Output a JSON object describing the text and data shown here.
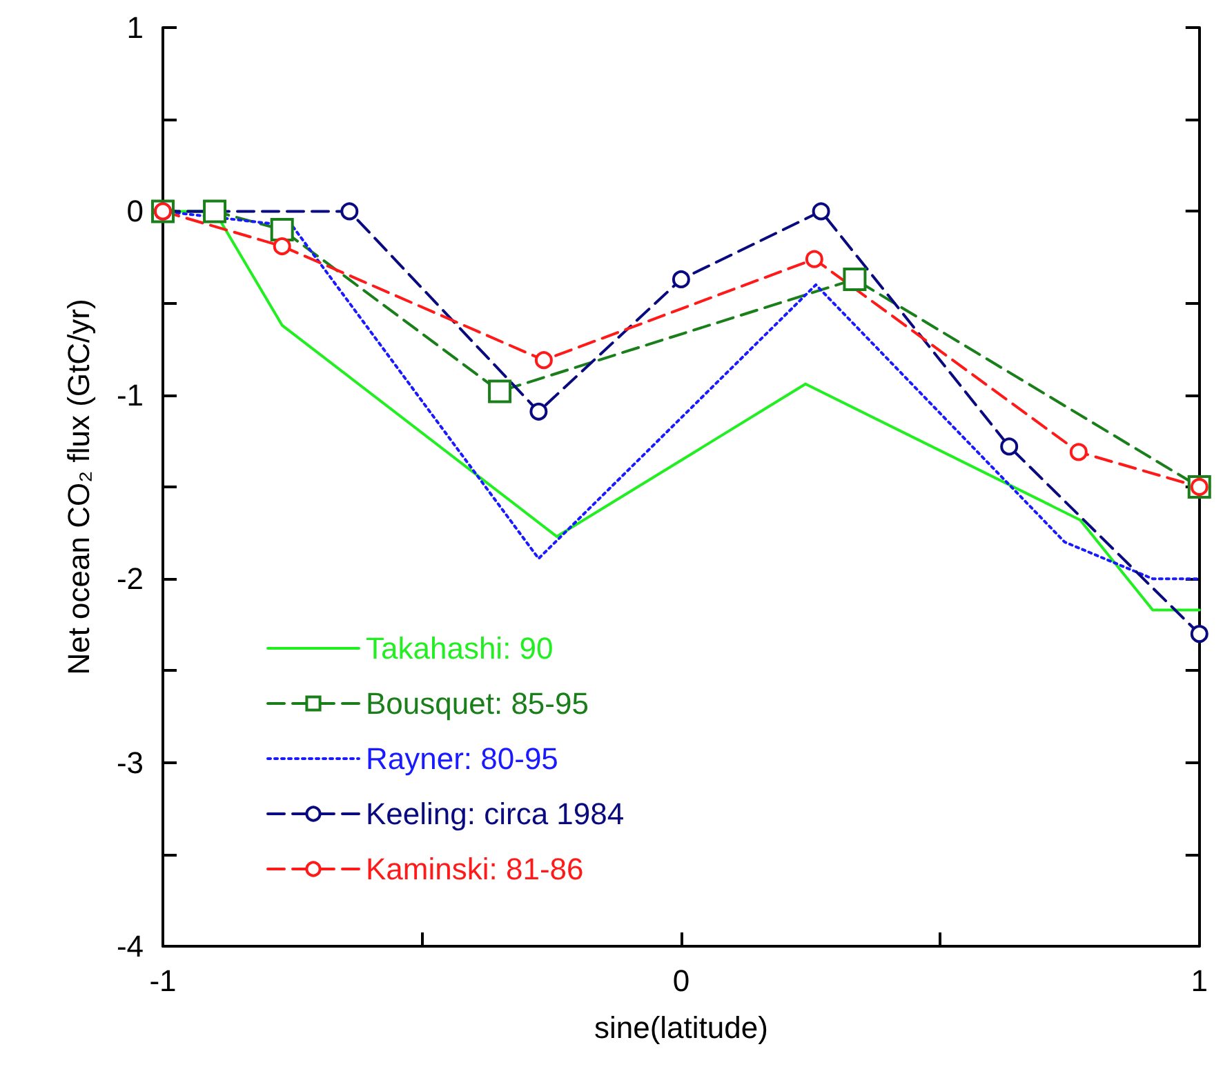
{
  "chart_data": {
    "type": "line",
    "xlabel": "sine(latitude)",
    "ylabel": "Net ocean CO₂ flux (GtC/yr)",
    "xlim": [
      -1,
      1
    ],
    "xticks": [
      -1,
      {
        "value": -0.5,
        "label": null
      },
      0,
      {
        "value": 0.5,
        "label": null
      },
      1
    ],
    "ylim": [
      -4,
      1
    ],
    "yticks": [
      -4,
      {
        "value": -3.5,
        "label": null
      },
      -3,
      {
        "value": -2.5,
        "label": null
      },
      -2,
      {
        "value": -1.5,
        "label": null
      },
      -1,
      {
        "value": -0.5,
        "label": null
      },
      0,
      {
        "value": 0.5,
        "label": null
      },
      1
    ],
    "grid": false,
    "legend": "bottom left",
    "series": [
      {
        "name": "Takahashi: 90",
        "color": "#22ee22",
        "line_style": "solid",
        "marker": "none",
        "x": [
          -1,
          -0.9,
          -0.77,
          -0.24,
          0.24,
          0.77,
          0.91,
          1
        ],
        "values": [
          0,
          0,
          -0.62,
          -1.77,
          -0.94,
          -1.68,
          -2.17,
          -2.17
        ]
      },
      {
        "name": "Bousquet: 85-95",
        "color": "#1a7f1a",
        "line_style": "dashed",
        "marker": "square",
        "x": [
          -1,
          -0.9,
          -0.77,
          -0.35,
          0.335,
          1
        ],
        "values": [
          0,
          0,
          -0.1,
          -0.98,
          -0.37,
          -1.5
        ]
      },
      {
        "name": "Rayner: 80-95",
        "color": "#1a1aff",
        "line_style": "dotted",
        "marker": "none",
        "x": [
          -1,
          -0.75,
          -0.275,
          0.26,
          0.74,
          0.91,
          1
        ],
        "values": [
          0,
          -0.08,
          -1.89,
          -0.4,
          -1.8,
          -2.0,
          -2.0
        ]
      },
      {
        "name": "Keeling: circa 1984",
        "color": "#0a0a80",
        "line_style": "dashed",
        "marker": "circle",
        "x": [
          -1,
          -0.64,
          -0.275,
          0,
          0.27,
          0.633,
          1
        ],
        "values": [
          0,
          0,
          -1.09,
          -0.37,
          0,
          -1.28,
          -2.3
        ]
      },
      {
        "name": "Kaminski: 81-86",
        "color": "#ff1a1a",
        "line_style": "dashed",
        "marker": "circle",
        "x": [
          -1,
          -0.77,
          -0.265,
          0.257,
          0.767,
          1
        ],
        "values": [
          0,
          -0.19,
          -0.81,
          -0.26,
          -1.31,
          -1.5
        ]
      }
    ]
  }
}
